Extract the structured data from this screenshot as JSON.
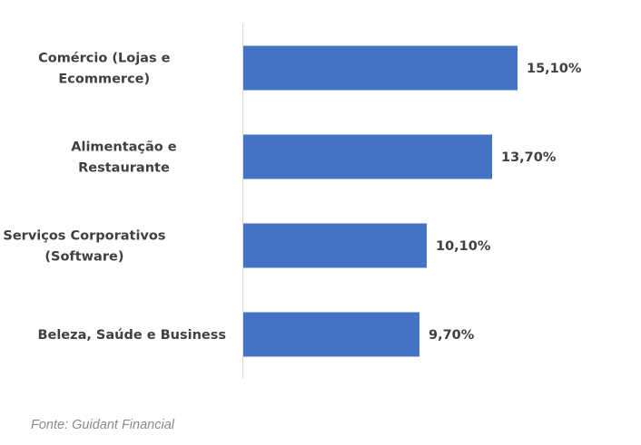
{
  "chart_data": {
    "type": "bar",
    "orientation": "horizontal",
    "categories": [
      [
        "Comércio (Lojas e",
        "Ecommerce)"
      ],
      [
        "Alimentação e",
        "Restaurante"
      ],
      [
        "Serviços Corporativos",
        "(Software)"
      ],
      [
        "Beleza, Saúde e Business"
      ]
    ],
    "values": [
      15.1,
      13.7,
      10.1,
      9.7
    ],
    "value_labels": [
      "15,10%",
      "13,70%",
      "10,10%",
      "9,70%"
    ],
    "unit": "%",
    "xlim": [
      0,
      19
    ],
    "grid": false,
    "legend": "none",
    "bar_color": "#4472c4"
  },
  "source": "Fonte: Guidant Financial"
}
